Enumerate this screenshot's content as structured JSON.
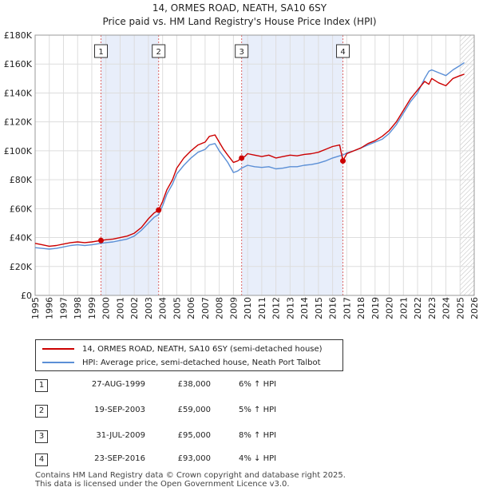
{
  "chart_data": {
    "type": "line",
    "title": "14, ORMES ROAD, NEATH, SA10 6SY",
    "subtitle": "Price paid vs. HM Land Registry's House Price Index (HPI)",
    "xlim": [
      1995,
      2026
    ],
    "ylim": [
      0,
      180000
    ],
    "x_ticks": [
      "1995",
      "1996",
      "1997",
      "1998",
      "1999",
      "2000",
      "2001",
      "2002",
      "2003",
      "2004",
      "2005",
      "2006",
      "2007",
      "2008",
      "2009",
      "2010",
      "2011",
      "2012",
      "2013",
      "2014",
      "2015",
      "2016",
      "2017",
      "2018",
      "2019",
      "2020",
      "2021",
      "2022",
      "2023",
      "2024",
      "2025",
      "2026"
    ],
    "y_ticks": [
      {
        "value": 0,
        "label": "£0"
      },
      {
        "value": 20000,
        "label": "£20K"
      },
      {
        "value": 40000,
        "label": "£40K"
      },
      {
        "value": 60000,
        "label": "£60K"
      },
      {
        "value": 80000,
        "label": "£80K"
      },
      {
        "value": 100000,
        "label": "£100K"
      },
      {
        "value": 120000,
        "label": "£120K"
      },
      {
        "value": 140000,
        "label": "£140K"
      },
      {
        "value": 160000,
        "label": "£160K"
      },
      {
        "value": 180000,
        "label": "£180K"
      }
    ],
    "shaded_ranges": [
      [
        1999.65,
        2003.72
      ],
      [
        2009.58,
        2016.73
      ]
    ],
    "forecast_start": 2025.0,
    "series": [
      {
        "name": "14, ORMES ROAD, NEATH, SA10 6SY (semi-detached house)",
        "color": "#cc0000",
        "x": [
          1995.0,
          1995.5,
          1996.0,
          1996.5,
          1997.0,
          1997.5,
          1998.0,
          1998.5,
          1999.0,
          1999.65,
          2000.0,
          2000.5,
          2001.0,
          2001.5,
          2002.0,
          2002.5,
          2003.0,
          2003.4,
          2003.72,
          2004.0,
          2004.3,
          2004.7,
          2005.0,
          2005.5,
          2006.0,
          2006.5,
          2007.0,
          2007.3,
          2007.7,
          2008.0,
          2008.3,
          2008.6,
          2009.0,
          2009.3,
          2009.58,
          2009.8,
          2010.0,
          2010.5,
          2011.0,
          2011.5,
          2012.0,
          2012.5,
          2013.0,
          2013.5,
          2014.0,
          2014.5,
          2015.0,
          2015.5,
          2016.0,
          2016.5,
          2016.73,
          2017.0,
          2017.5,
          2018.0,
          2018.5,
          2019.0,
          2019.5,
          2020.0,
          2020.5,
          2021.0,
          2021.5,
          2022.0,
          2022.5,
          2022.8,
          2023.0,
          2023.5,
          2024.0,
          2024.5,
          2025.0,
          2025.3
        ],
        "values": [
          36000,
          35000,
          34000,
          34500,
          35500,
          36500,
          37000,
          36500,
          37000,
          38000,
          38500,
          39000,
          40000,
          41000,
          43000,
          47000,
          53000,
          57000,
          59000,
          65000,
          73000,
          80000,
          88000,
          95000,
          100000,
          104000,
          106000,
          110000,
          111000,
          106000,
          101000,
          97000,
          92000,
          93000,
          95000,
          96000,
          98000,
          97000,
          96000,
          97000,
          95000,
          96000,
          97000,
          96500,
          97500,
          98000,
          99000,
          101000,
          103000,
          104000,
          93000,
          98000,
          100000,
          102000,
          105000,
          107000,
          110000,
          114000,
          120000,
          128000,
          136000,
          142000,
          148000,
          146000,
          150000,
          147000,
          145000,
          150000,
          152000,
          153000
        ]
      },
      {
        "name": "HPI: Average price, semi-detached house, Neath Port Talbot",
        "color": "#5b8fd6",
        "x": [
          1995.0,
          1995.5,
          1996.0,
          1996.5,
          1997.0,
          1997.5,
          1998.0,
          1998.5,
          1999.0,
          1999.65,
          2000.0,
          2000.5,
          2001.0,
          2001.5,
          2002.0,
          2002.5,
          2003.0,
          2003.4,
          2003.72,
          2004.0,
          2004.3,
          2004.7,
          2005.0,
          2005.5,
          2006.0,
          2006.5,
          2007.0,
          2007.3,
          2007.7,
          2008.0,
          2008.3,
          2008.6,
          2009.0,
          2009.3,
          2009.58,
          2009.8,
          2010.0,
          2010.5,
          2011.0,
          2011.5,
          2012.0,
          2012.5,
          2013.0,
          2013.5,
          2014.0,
          2014.5,
          2015.0,
          2015.5,
          2016.0,
          2016.5,
          2016.73,
          2017.0,
          2017.5,
          2018.0,
          2018.5,
          2019.0,
          2019.5,
          2020.0,
          2020.5,
          2021.0,
          2021.5,
          2022.0,
          2022.5,
          2022.8,
          2023.0,
          2023.5,
          2024.0,
          2024.5,
          2025.0,
          2025.3
        ],
        "values": [
          33000,
          32500,
          32000,
          32500,
          33500,
          34500,
          35000,
          34500,
          35000,
          36000,
          36500,
          37000,
          38000,
          39000,
          41000,
          45000,
          50000,
          54000,
          56000,
          62000,
          70000,
          77000,
          84000,
          90000,
          95000,
          99000,
          101000,
          104000,
          105000,
          100000,
          96000,
          92000,
          85000,
          86000,
          88000,
          89000,
          90000,
          89000,
          88500,
          89000,
          87500,
          88000,
          89000,
          89000,
          90000,
          90500,
          91500,
          93000,
          95000,
          96500,
          97000,
          98500,
          100000,
          102000,
          104000,
          106000,
          108000,
          112000,
          118000,
          126000,
          134000,
          140000,
          150000,
          155000,
          156000,
          154000,
          152000,
          156000,
          159000,
          161000
        ]
      }
    ],
    "markers": [
      {
        "label": "1",
        "x": 1999.65,
        "y": 38000
      },
      {
        "label": "2",
        "x": 2003.72,
        "y": 59000
      },
      {
        "label": "3",
        "x": 2009.58,
        "y": 95000
      },
      {
        "label": "4",
        "x": 2016.73,
        "y": 93000
      }
    ]
  },
  "legend": {
    "series1_label": "14, ORMES ROAD, NEATH, SA10 6SY (semi-detached house)",
    "series2_label": "HPI: Average price, semi-detached house, Neath Port Talbot"
  },
  "transactions": [
    {
      "num": "1",
      "date": "27-AUG-1999",
      "price": "£38,000",
      "hpi": "6% ↑ HPI"
    },
    {
      "num": "2",
      "date": "19-SEP-2003",
      "price": "£59,000",
      "hpi": "5% ↑ HPI"
    },
    {
      "num": "3",
      "date": "31-JUL-2009",
      "price": "£95,000",
      "hpi": "8% ↑ HPI"
    },
    {
      "num": "4",
      "date": "23-SEP-2016",
      "price": "£93,000",
      "hpi": "4% ↓ HPI"
    }
  ],
  "footer": {
    "line1": "Contains HM Land Registry data © Crown copyright and database right 2025.",
    "line2": "This data is licensed under the Open Government Licence v3.0."
  }
}
